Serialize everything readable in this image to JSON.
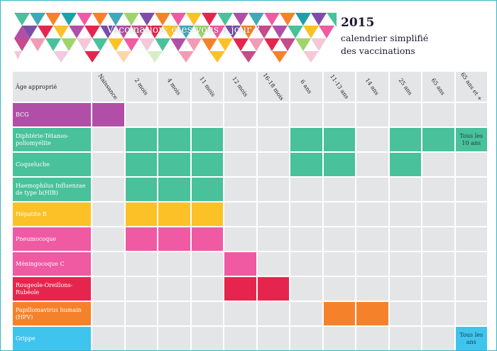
{
  "banner": {
    "title": "Vaccination: êtes-vous à jour ?"
  },
  "header": {
    "year": "2015",
    "subtitle_line1": "calendrier simplifié",
    "subtitle_line2": "des vaccinations"
  },
  "colors": {
    "bcg": "#b14fa8",
    "dtp": "#49c19b",
    "hepatite": "#fcc126",
    "pneumo": "#ef5aa3",
    "meningo": "#ef5aa3",
    "ror": "#e6254e",
    "hpv": "#f5822a",
    "grippe": "#3fc4ee",
    "empty": "#e4e5e7"
  },
  "table": {
    "corner_label": "Âge approprié",
    "ages": [
      "Naissance",
      "2 mois",
      "4 mois",
      "11 mois",
      "12 mois",
      "16-18 mois",
      "6 ans",
      "11-13 ans",
      "14 ans",
      "25 ans",
      "65 ans",
      "65 ans et +"
    ],
    "rows": [
      {
        "label": "BCG",
        "color_key": "bcg"
      },
      {
        "label": "Diphtérie-Tétanos-poliomyélite",
        "color_key": "dtp"
      },
      {
        "label": "Coqueluche",
        "color_key": "dtp"
      },
      {
        "label": "Haemophilus Influenzae de type b(HIB)",
        "color_key": "dtp"
      },
      {
        "label": "Hépatite B",
        "color_key": "hepatite"
      },
      {
        "label": "Pneumocoque",
        "color_key": "pneumo"
      },
      {
        "label": "Méningocoque C",
        "color_key": "meningo"
      },
      {
        "label": "Rougeole-Oreillons-Rubéole",
        "color_key": "ror"
      },
      {
        "label": "Papillomavirus humain (HPV)",
        "color_key": "hpv"
      },
      {
        "label": "Grippe",
        "color_key": "grippe"
      }
    ],
    "notes": {
      "dtp_65plus": "Tous les 10 ans",
      "grippe_65plus": "Tous les ans"
    }
  }
}
